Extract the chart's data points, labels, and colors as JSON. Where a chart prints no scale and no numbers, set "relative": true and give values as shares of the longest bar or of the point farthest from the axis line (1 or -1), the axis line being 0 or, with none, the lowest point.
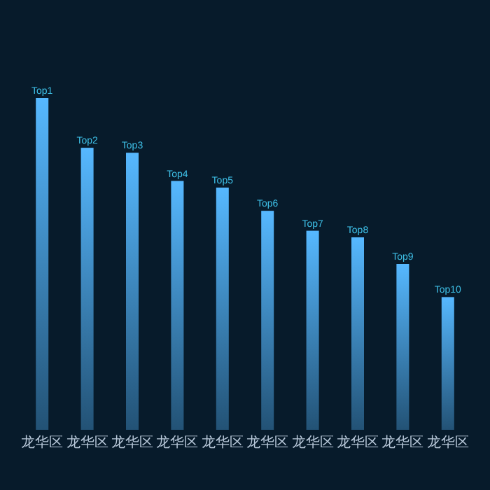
{
  "chart_data": {
    "type": "bar",
    "relative": true,
    "categories": [
      "龙华区",
      "龙华区",
      "龙华区",
      "龙华区",
      "龙华区",
      "龙华区",
      "龙华区",
      "龙华区",
      "龙华区",
      "龙华区"
    ],
    "values": [
      1,
      0.85,
      0.835,
      0.75,
      0.73,
      0.66,
      0.6,
      0.58,
      0.5,
      0.4
    ],
    "annotations": [
      "Top1",
      "Top2",
      "Top3",
      "Top4",
      "Top5",
      "Top6",
      "Top7",
      "Top8",
      "Top9",
      "Top10"
    ],
    "color": "#56b8ff"
  }
}
